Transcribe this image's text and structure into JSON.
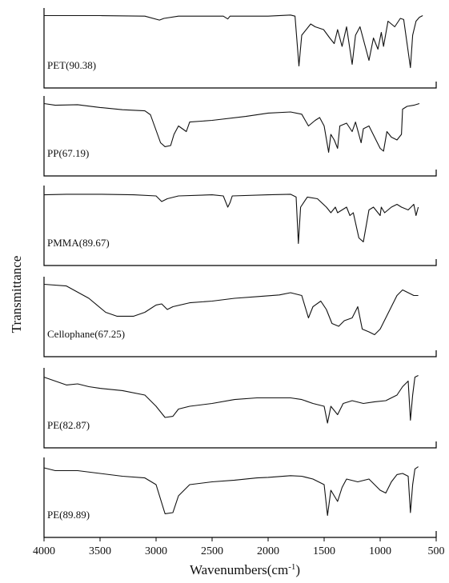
{
  "chart_data": {
    "type": "line",
    "xlabel": "Wavenumbers(cm",
    "xlabel_sup": "-1",
    "xlabel_close": ")",
    "ylabel": "Transmittance",
    "xlim": [
      4000,
      500
    ],
    "x_ticks": [
      "4000",
      "3500",
      "3000",
      "2500",
      "2000",
      "1500",
      "1000",
      "500"
    ],
    "x_tick_values": [
      4000,
      3500,
      3000,
      2500,
      2000,
      1500,
      1000,
      500
    ],
    "x_reversed": true,
    "grid": false,
    "legend": "none",
    "y_unit": "relative transmittance (0 = strongest absorption, 1 = baseline)",
    "series": [
      {
        "name": "PET(90.38)",
        "points": [
          [
            4000,
            0.95
          ],
          [
            3800,
            0.95
          ],
          [
            3500,
            0.95
          ],
          [
            3100,
            0.94
          ],
          [
            2970,
            0.87
          ],
          [
            2930,
            0.9
          ],
          [
            2800,
            0.94
          ],
          [
            2400,
            0.94
          ],
          [
            2360,
            0.89
          ],
          [
            2340,
            0.94
          ],
          [
            2000,
            0.94
          ],
          [
            1800,
            0.96
          ],
          [
            1760,
            0.94
          ],
          [
            1725,
            0.05
          ],
          [
            1700,
            0.6
          ],
          [
            1620,
            0.8
          ],
          [
            1580,
            0.75
          ],
          [
            1505,
            0.7
          ],
          [
            1450,
            0.55
          ],
          [
            1410,
            0.45
          ],
          [
            1380,
            0.7
          ],
          [
            1340,
            0.4
          ],
          [
            1300,
            0.75
          ],
          [
            1250,
            0.08
          ],
          [
            1220,
            0.6
          ],
          [
            1180,
            0.75
          ],
          [
            1120,
            0.3
          ],
          [
            1100,
            0.15
          ],
          [
            1060,
            0.55
          ],
          [
            1020,
            0.35
          ],
          [
            990,
            0.65
          ],
          [
            970,
            0.4
          ],
          [
            930,
            0.85
          ],
          [
            870,
            0.75
          ],
          [
            820,
            0.9
          ],
          [
            790,
            0.88
          ],
          [
            730,
            0.02
          ],
          [
            710,
            0.6
          ],
          [
            680,
            0.85
          ],
          [
            650,
            0.92
          ],
          [
            620,
            0.95
          ]
        ]
      },
      {
        "name": "PP(67.19)",
        "points": [
          [
            4000,
            0.95
          ],
          [
            3900,
            0.92
          ],
          [
            3700,
            0.93
          ],
          [
            3500,
            0.88
          ],
          [
            3300,
            0.84
          ],
          [
            3100,
            0.82
          ],
          [
            3050,
            0.75
          ],
          [
            2960,
            0.25
          ],
          [
            2920,
            0.18
          ],
          [
            2870,
            0.2
          ],
          [
            2840,
            0.4
          ],
          [
            2800,
            0.55
          ],
          [
            2730,
            0.45
          ],
          [
            2700,
            0.62
          ],
          [
            2500,
            0.65
          ],
          [
            2200,
            0.72
          ],
          [
            2000,
            0.78
          ],
          [
            1800,
            0.8
          ],
          [
            1700,
            0.76
          ],
          [
            1640,
            0.55
          ],
          [
            1580,
            0.65
          ],
          [
            1540,
            0.7
          ],
          [
            1500,
            0.55
          ],
          [
            1460,
            0.08
          ],
          [
            1440,
            0.4
          ],
          [
            1410,
            0.3
          ],
          [
            1380,
            0.15
          ],
          [
            1360,
            0.55
          ],
          [
            1300,
            0.6
          ],
          [
            1250,
            0.45
          ],
          [
            1220,
            0.62
          ],
          [
            1170,
            0.25
          ],
          [
            1150,
            0.5
          ],
          [
            1100,
            0.55
          ],
          [
            1000,
            0.15
          ],
          [
            970,
            0.1
          ],
          [
            940,
            0.45
          ],
          [
            900,
            0.35
          ],
          [
            850,
            0.3
          ],
          [
            810,
            0.4
          ],
          [
            800,
            0.85
          ],
          [
            760,
            0.9
          ],
          [
            700,
            0.92
          ],
          [
            650,
            0.95
          ]
        ]
      },
      {
        "name": "PMMA(89.67)",
        "points": [
          [
            4000,
            0.92
          ],
          [
            3800,
            0.93
          ],
          [
            3500,
            0.93
          ],
          [
            3200,
            0.92
          ],
          [
            3000,
            0.9
          ],
          [
            2950,
            0.8
          ],
          [
            2900,
            0.85
          ],
          [
            2800,
            0.9
          ],
          [
            2500,
            0.92
          ],
          [
            2400,
            0.9
          ],
          [
            2360,
            0.7
          ],
          [
            2340,
            0.78
          ],
          [
            2320,
            0.9
          ],
          [
            2000,
            0.92
          ],
          [
            1800,
            0.93
          ],
          [
            1750,
            0.88
          ],
          [
            1730,
            0.05
          ],
          [
            1710,
            0.7
          ],
          [
            1650,
            0.88
          ],
          [
            1560,
            0.85
          ],
          [
            1480,
            0.7
          ],
          [
            1440,
            0.6
          ],
          [
            1400,
            0.7
          ],
          [
            1380,
            0.6
          ],
          [
            1300,
            0.7
          ],
          [
            1270,
            0.55
          ],
          [
            1240,
            0.6
          ],
          [
            1190,
            0.15
          ],
          [
            1150,
            0.08
          ],
          [
            1100,
            0.65
          ],
          [
            1060,
            0.7
          ],
          [
            1000,
            0.55
          ],
          [
            990,
            0.7
          ],
          [
            960,
            0.6
          ],
          [
            900,
            0.7
          ],
          [
            850,
            0.75
          ],
          [
            810,
            0.7
          ],
          [
            750,
            0.65
          ],
          [
            700,
            0.75
          ],
          [
            680,
            0.55
          ],
          [
            660,
            0.7
          ]
        ]
      },
      {
        "name": "Cellophane(67.25)",
        "points": [
          [
            4000,
            0.95
          ],
          [
            3800,
            0.92
          ],
          [
            3600,
            0.7
          ],
          [
            3450,
            0.45
          ],
          [
            3350,
            0.38
          ],
          [
            3200,
            0.38
          ],
          [
            3100,
            0.45
          ],
          [
            3000,
            0.58
          ],
          [
            2950,
            0.6
          ],
          [
            2900,
            0.5
          ],
          [
            2850,
            0.55
          ],
          [
            2700,
            0.62
          ],
          [
            2500,
            0.65
          ],
          [
            2300,
            0.7
          ],
          [
            2100,
            0.73
          ],
          [
            1900,
            0.76
          ],
          [
            1800,
            0.8
          ],
          [
            1700,
            0.75
          ],
          [
            1640,
            0.35
          ],
          [
            1600,
            0.55
          ],
          [
            1530,
            0.65
          ],
          [
            1480,
            0.5
          ],
          [
            1430,
            0.25
          ],
          [
            1370,
            0.2
          ],
          [
            1320,
            0.3
          ],
          [
            1250,
            0.35
          ],
          [
            1200,
            0.55
          ],
          [
            1160,
            0.15
          ],
          [
            1100,
            0.1
          ],
          [
            1050,
            0.05
          ],
          [
            1000,
            0.15
          ],
          [
            900,
            0.55
          ],
          [
            850,
            0.75
          ],
          [
            800,
            0.85
          ],
          [
            750,
            0.8
          ],
          [
            700,
            0.75
          ],
          [
            660,
            0.75
          ]
        ]
      },
      {
        "name": "PE(82.87)",
        "points": [
          [
            4000,
            0.92
          ],
          [
            3900,
            0.85
          ],
          [
            3800,
            0.78
          ],
          [
            3700,
            0.8
          ],
          [
            3600,
            0.75
          ],
          [
            3500,
            0.72
          ],
          [
            3300,
            0.68
          ],
          [
            3100,
            0.6
          ],
          [
            3000,
            0.4
          ],
          [
            2920,
            0.2
          ],
          [
            2850,
            0.22
          ],
          [
            2800,
            0.35
          ],
          [
            2700,
            0.4
          ],
          [
            2500,
            0.45
          ],
          [
            2300,
            0.52
          ],
          [
            2100,
            0.55
          ],
          [
            2000,
            0.55
          ],
          [
            1800,
            0.55
          ],
          [
            1700,
            0.52
          ],
          [
            1600,
            0.45
          ],
          [
            1500,
            0.4
          ],
          [
            1470,
            0.1
          ],
          [
            1440,
            0.4
          ],
          [
            1380,
            0.25
          ],
          [
            1330,
            0.45
          ],
          [
            1250,
            0.5
          ],
          [
            1150,
            0.45
          ],
          [
            1050,
            0.48
          ],
          [
            950,
            0.5
          ],
          [
            850,
            0.6
          ],
          [
            800,
            0.75
          ],
          [
            750,
            0.85
          ],
          [
            730,
            0.15
          ],
          [
            710,
            0.6
          ],
          [
            690,
            0.92
          ],
          [
            660,
            0.95
          ]
        ]
      },
      {
        "name": "PE(89.89)",
        "points": [
          [
            4000,
            0.9
          ],
          [
            3900,
            0.85
          ],
          [
            3700,
            0.85
          ],
          [
            3500,
            0.8
          ],
          [
            3300,
            0.75
          ],
          [
            3100,
            0.72
          ],
          [
            3000,
            0.6
          ],
          [
            2920,
            0.08
          ],
          [
            2850,
            0.1
          ],
          [
            2800,
            0.4
          ],
          [
            2700,
            0.6
          ],
          [
            2500,
            0.65
          ],
          [
            2300,
            0.68
          ],
          [
            2100,
            0.72
          ],
          [
            2000,
            0.73
          ],
          [
            1800,
            0.76
          ],
          [
            1700,
            0.75
          ],
          [
            1600,
            0.7
          ],
          [
            1500,
            0.6
          ],
          [
            1470,
            0.05
          ],
          [
            1440,
            0.5
          ],
          [
            1380,
            0.3
          ],
          [
            1340,
            0.55
          ],
          [
            1300,
            0.7
          ],
          [
            1200,
            0.65
          ],
          [
            1100,
            0.7
          ],
          [
            1000,
            0.5
          ],
          [
            950,
            0.45
          ],
          [
            900,
            0.65
          ],
          [
            850,
            0.78
          ],
          [
            800,
            0.8
          ],
          [
            750,
            0.75
          ],
          [
            730,
            0.1
          ],
          [
            710,
            0.6
          ],
          [
            690,
            0.88
          ],
          [
            660,
            0.92
          ]
        ]
      }
    ]
  }
}
